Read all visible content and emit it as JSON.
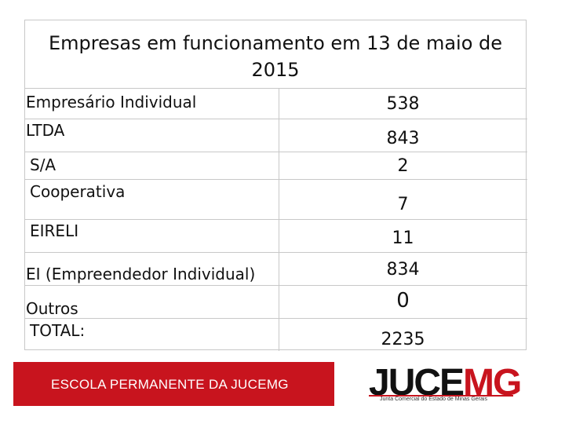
{
  "table": {
    "title_line1": "Empresas   em  funcionamento  em 13 de maio de",
    "title_line2": "2015",
    "rows": [
      {
        "label": "Empresário Individual",
        "value": "538"
      },
      {
        "label": "LTDA",
        "value": "843"
      },
      {
        "label": "S/A",
        "value": "2"
      },
      {
        "label": "Cooperativa",
        "value": "7"
      },
      {
        "label": "EIRELI",
        "value": "11"
      },
      {
        "label": "EI (Empreendedor Individual)",
        "value": "834"
      },
      {
        "label": "Outros",
        "value": "0"
      },
      {
        "label": "TOTAL:",
        "value": "2235"
      }
    ]
  },
  "footer": {
    "banner_text": "ESCOLA PERMANENTE DA JUCEMG",
    "logo_part1": "JUCE",
    "logo_part2": "MG",
    "logo_subtitle": "Junta Comercial do Estado de Minas Gerais",
    "brand_red": "#c8141e"
  }
}
